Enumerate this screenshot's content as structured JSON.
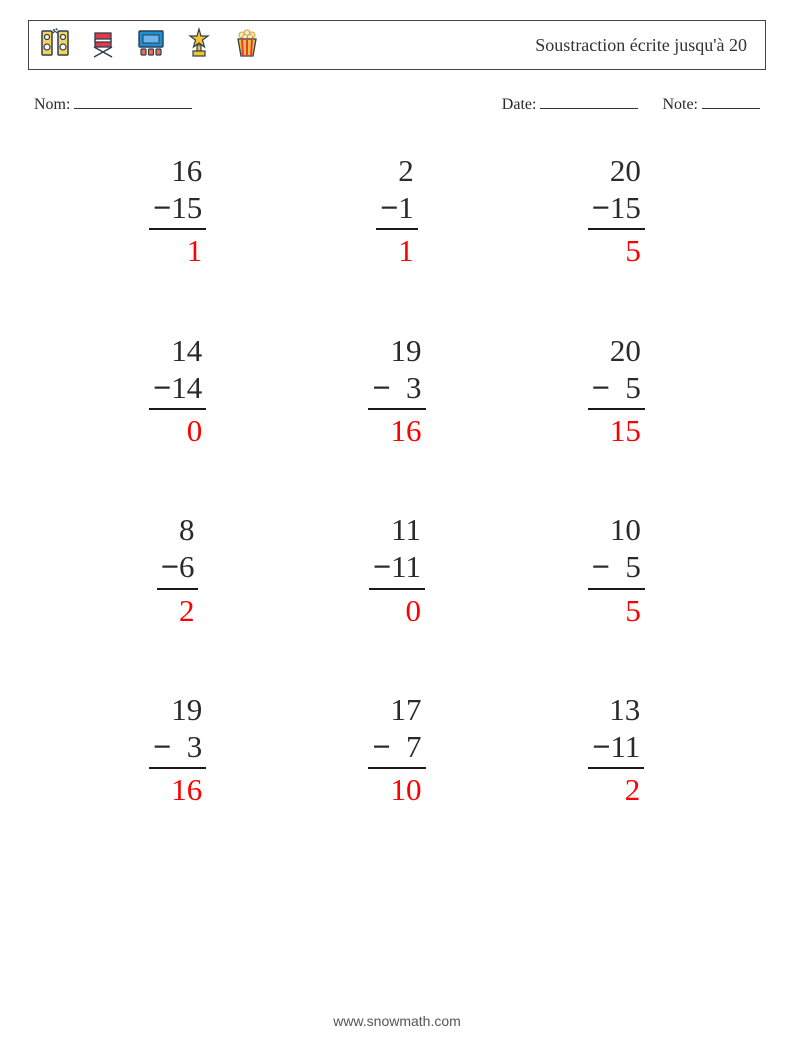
{
  "header": {
    "title": "Soustraction écrite jusqu'à 20",
    "icon_colors": {
      "speaker_body": "#f4d35e",
      "speaker_stroke": "#2c3e50",
      "chair_red": "#e63946",
      "chair_stroke": "#2c3e50",
      "tv_blue": "#1d8ed8",
      "tv_stroke": "#2c3e50",
      "seats_orange": "#e76f51",
      "trophy_gold": "#f4c430",
      "trophy_stroke": "#2c3e50",
      "popcorn_bucket": "#f4c430",
      "popcorn_stroke": "#2c3e50",
      "popcorn_red": "#e63946",
      "popcorn_kernel": "#f7e9c0"
    }
  },
  "meta": {
    "name_label": "Nom:",
    "date_label": "Date:",
    "note_label": "Note:"
  },
  "worksheet": {
    "operator": "−",
    "answer_color": "#ff0000",
    "problem_fontsize": 31,
    "columns": 3,
    "rows": 4,
    "problems": [
      {
        "minuend": 16,
        "subtrahend": 15,
        "answer": 1
      },
      {
        "minuend": 2,
        "subtrahend": 1,
        "answer": 1
      },
      {
        "minuend": 20,
        "subtrahend": 15,
        "answer": 5
      },
      {
        "minuend": 14,
        "subtrahend": 14,
        "answer": 0
      },
      {
        "minuend": 19,
        "subtrahend": 3,
        "answer": 16
      },
      {
        "minuend": 20,
        "subtrahend": 5,
        "answer": 15
      },
      {
        "minuend": 8,
        "subtrahend": 6,
        "answer": 2
      },
      {
        "minuend": 11,
        "subtrahend": 11,
        "answer": 0
      },
      {
        "minuend": 10,
        "subtrahend": 5,
        "answer": 5
      },
      {
        "minuend": 19,
        "subtrahend": 3,
        "answer": 16
      },
      {
        "minuend": 17,
        "subtrahend": 7,
        "answer": 10
      },
      {
        "minuend": 13,
        "subtrahend": 11,
        "answer": 2
      }
    ]
  },
  "footer": {
    "text": "www.snowmath.com"
  }
}
